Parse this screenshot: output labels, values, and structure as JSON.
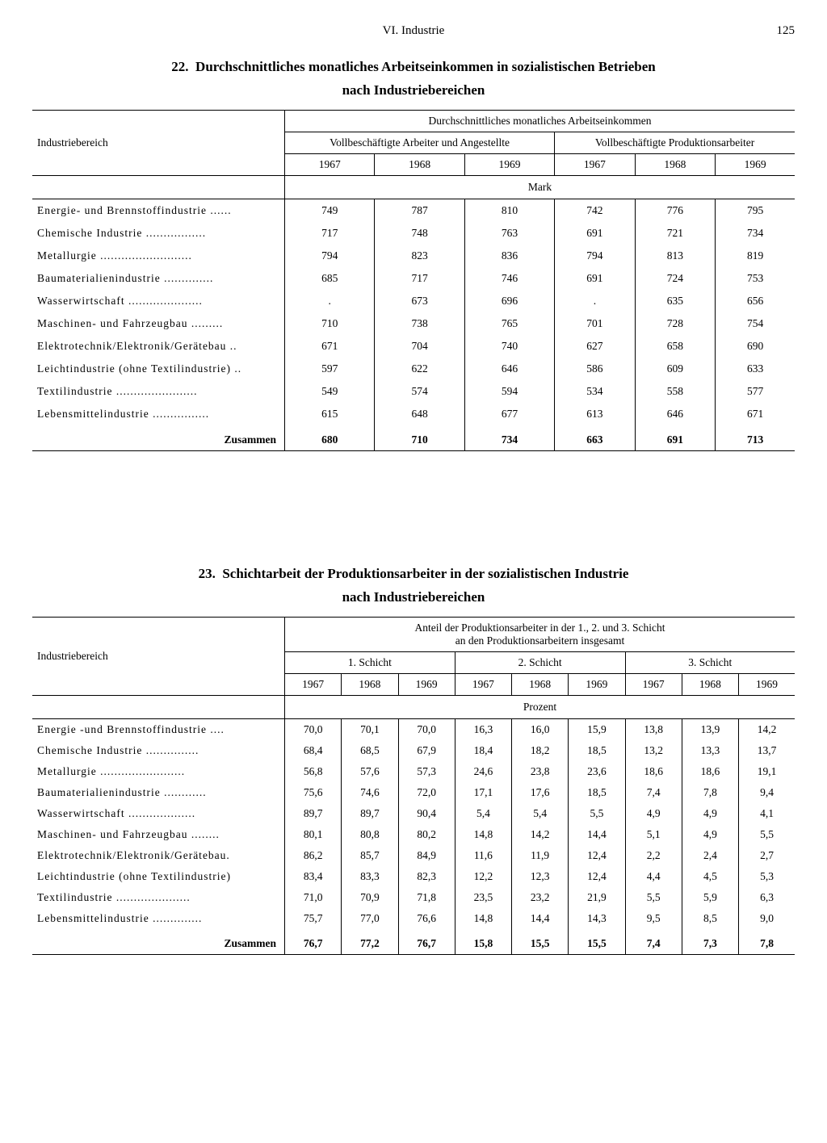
{
  "header": {
    "section": "VI. Industrie",
    "page": "125"
  },
  "table22": {
    "number": "22.",
    "title_line1": "Durchschnittliches monatliches Arbeitseinkommen in sozialistischen Betrieben",
    "title_line2": "nach Industriebereichen",
    "row_header": "Industriebereich",
    "super_header": "Durchschnittliches monatliches Arbeitseinkommen",
    "group_a": "Vollbeschäftigte Arbeiter und Angestellte",
    "group_b": "Vollbeschäftigte Produktionsarbeiter",
    "years": [
      "1967",
      "1968",
      "1969",
      "1967",
      "1968",
      "1969"
    ],
    "unit": "Mark",
    "rows": [
      {
        "label": "Energie- und Brennstoffindustrie ......",
        "v": [
          "749",
          "787",
          "810",
          "742",
          "776",
          "795"
        ]
      },
      {
        "label": "Chemische Industrie .................",
        "v": [
          "717",
          "748",
          "763",
          "691",
          "721",
          "734"
        ]
      },
      {
        "label": "Metallurgie ..........................",
        "v": [
          "794",
          "823",
          "836",
          "794",
          "813",
          "819"
        ]
      },
      {
        "label": "Baumaterialienindustrie ..............",
        "v": [
          "685",
          "717",
          "746",
          "691",
          "724",
          "753"
        ]
      },
      {
        "label": "Wasserwirtschaft .....................",
        "v": [
          ".",
          "673",
          "696",
          ".",
          "635",
          "656"
        ]
      },
      {
        "label": "Maschinen- und Fahrzeugbau .........",
        "v": [
          "710",
          "738",
          "765",
          "701",
          "728",
          "754"
        ]
      },
      {
        "label": "Elektrotechnik/Elektronik/Gerätebau ..",
        "v": [
          "671",
          "704",
          "740",
          "627",
          "658",
          "690"
        ]
      },
      {
        "label": "Leichtindustrie (ohne Textilindustrie) ..",
        "v": [
          "597",
          "622",
          "646",
          "586",
          "609",
          "633"
        ]
      },
      {
        "label": "Textilindustrie .......................",
        "v": [
          "549",
          "574",
          "594",
          "534",
          "558",
          "577"
        ]
      },
      {
        "label": "Lebensmittelindustrie ................",
        "v": [
          "615",
          "648",
          "677",
          "613",
          "646",
          "671"
        ]
      }
    ],
    "total_label": "Zusammen",
    "total": [
      "680",
      "710",
      "734",
      "663",
      "691",
      "713"
    ]
  },
  "table23": {
    "number": "23.",
    "title_line1": "Schichtarbeit der Produktionsarbeiter in der sozialistischen Industrie",
    "title_line2": "nach Industriebereichen",
    "row_header": "Industriebereich",
    "super_header_l1": "Anteil der Produktionsarbeiter in der 1., 2. und 3. Schicht",
    "super_header_l2": "an den Produktionsarbeitern insgesamt",
    "groups": [
      "1. Schicht",
      "2. Schicht",
      "3. Schicht"
    ],
    "years": [
      "1967",
      "1968",
      "1969",
      "1967",
      "1968",
      "1969",
      "1967",
      "1968",
      "1969"
    ],
    "unit": "Prozent",
    "rows": [
      {
        "label": "Energie -und Brennstoffindustrie ....",
        "v": [
          "70,0",
          "70,1",
          "70,0",
          "16,3",
          "16,0",
          "15,9",
          "13,8",
          "13,9",
          "14,2"
        ]
      },
      {
        "label": "Chemische Industrie ...............",
        "v": [
          "68,4",
          "68,5",
          "67,9",
          "18,4",
          "18,2",
          "18,5",
          "13,2",
          "13,3",
          "13,7"
        ]
      },
      {
        "label": "Metallurgie ........................",
        "v": [
          "56,8",
          "57,6",
          "57,3",
          "24,6",
          "23,8",
          "23,6",
          "18,6",
          "18,6",
          "19,1"
        ]
      },
      {
        "label": "Baumaterialienindustrie ............",
        "v": [
          "75,6",
          "74,6",
          "72,0",
          "17,1",
          "17,6",
          "18,5",
          "7,4",
          "7,8",
          "9,4"
        ]
      },
      {
        "label": "Wasserwirtschaft ...................",
        "v": [
          "89,7",
          "89,7",
          "90,4",
          "5,4",
          "5,4",
          "5,5",
          "4,9",
          "4,9",
          "4,1"
        ]
      },
      {
        "label": "Maschinen- und Fahrzeugbau ........",
        "v": [
          "80,1",
          "80,8",
          "80,2",
          "14,8",
          "14,2",
          "14,4",
          "5,1",
          "4,9",
          "5,5"
        ]
      },
      {
        "label": "Elektrotechnik/Elektronik/Gerätebau.",
        "v": [
          "86,2",
          "85,7",
          "84,9",
          "11,6",
          "11,9",
          "12,4",
          "2,2",
          "2,4",
          "2,7"
        ]
      },
      {
        "label": "Leichtindustrie (ohne Textilindustrie)",
        "v": [
          "83,4",
          "83,3",
          "82,3",
          "12,2",
          "12,3",
          "12,4",
          "4,4",
          "4,5",
          "5,3"
        ]
      },
      {
        "label": "Textilindustrie .....................",
        "v": [
          "71,0",
          "70,9",
          "71,8",
          "23,5",
          "23,2",
          "21,9",
          "5,5",
          "5,9",
          "6,3"
        ]
      },
      {
        "label": "Lebensmittelindustrie ..............",
        "v": [
          "75,7",
          "77,0",
          "76,6",
          "14,8",
          "14,4",
          "14,3",
          "9,5",
          "8,5",
          "9,0"
        ]
      }
    ],
    "total_label": "Zusammen",
    "total": [
      "76,7",
      "77,2",
      "76,7",
      "15,8",
      "15,5",
      "15,5",
      "7,4",
      "7,3",
      "7,8"
    ]
  },
  "style": {
    "text_color": "#000000",
    "background_color": "#ffffff",
    "rule_color": "#000000",
    "body_fontsize_pt": 13.5,
    "title_fontsize_pt": 17,
    "font_family": "Times New Roman, serif"
  }
}
